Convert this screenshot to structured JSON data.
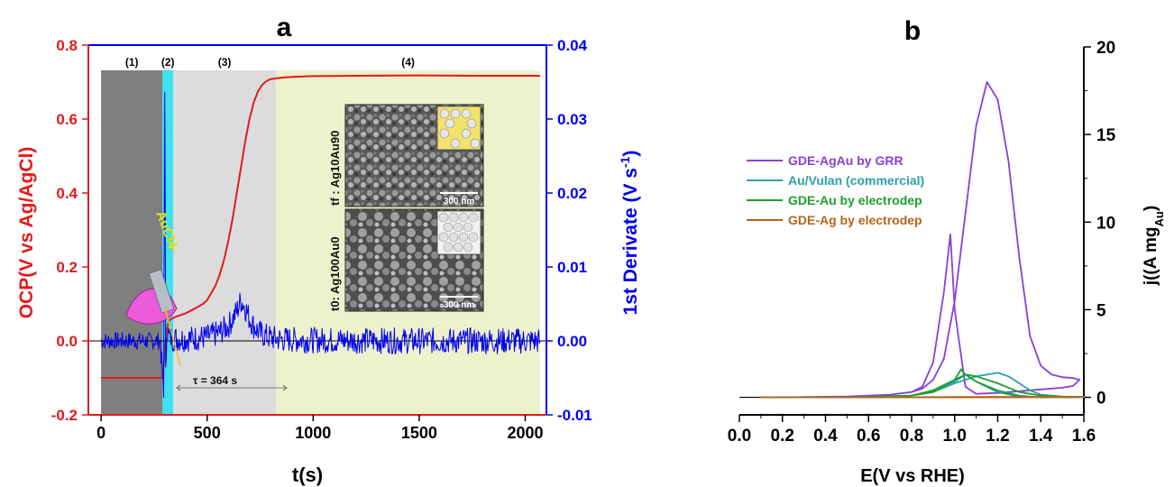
{
  "chart_data": [
    {
      "panel": "a",
      "type": "line",
      "panel_label": "a",
      "xlabel": "t(s)",
      "ylabel_left": "OCP(V vs Ag/AgCl)",
      "ylabel_right": "1st Derivate (V s-1)",
      "xlim": [
        -60,
        2100
      ],
      "ylim_left": [
        -0.2,
        0.8
      ],
      "ylim_right": [
        -0.01,
        0.04
      ],
      "x_ticks": [
        "0",
        "500",
        "1000",
        "1500",
        "2000"
      ],
      "y_ticks_left": [
        "-0.2",
        "0.0",
        "0.2",
        "0.4",
        "0.6",
        "0.8"
      ],
      "y_ticks_right": [
        "-0.01",
        "0.00",
        "0.01",
        "0.02",
        "0.03",
        "0.04"
      ],
      "colors": {
        "ocp": "#e31a1c",
        "derivative": "#0000ee",
        "left_axis": "#e31a1c",
        "right_axis": "#0000ee"
      },
      "regions": [
        {
          "label": "(1)",
          "x": [
            0,
            290
          ],
          "color": "#7f7f7f"
        },
        {
          "label": "(2)",
          "x": [
            290,
            340
          ],
          "color": "#3fe0f0"
        },
        {
          "label": "(3)",
          "x": [
            340,
            825
          ],
          "color": "#dcdcdc"
        },
        {
          "label": "(4)",
          "x": [
            825,
            2070
          ],
          "color": "#eef2cc"
        }
      ],
      "series": [
        {
          "axis": "left",
          "color": "#e31a1c",
          "x": [
            0,
            280,
            290,
            295,
            300,
            310,
            320,
            350,
            400,
            450,
            480,
            500,
            520,
            540,
            560,
            580,
            600,
            620,
            640,
            660,
            680,
            700,
            720,
            740,
            760,
            780,
            800,
            825,
            850,
            900,
            1000,
            1200,
            1500,
            1800,
            2070
          ],
          "y": [
            -0.1,
            -0.1,
            -0.1,
            -0.07,
            -0.02,
            0.03,
            0.055,
            0.065,
            0.075,
            0.09,
            0.1,
            0.11,
            0.13,
            0.15,
            0.18,
            0.22,
            0.27,
            0.33,
            0.4,
            0.47,
            0.54,
            0.6,
            0.645,
            0.675,
            0.693,
            0.703,
            0.708,
            0.71,
            0.712,
            0.714,
            0.716,
            0.717,
            0.718,
            0.717,
            0.717
          ]
        },
        {
          "axis": "right",
          "color": "#0000ee",
          "x": [
            0,
            100,
            200,
            280,
            295,
            300,
            305,
            310,
            320,
            350,
            400,
            450,
            500,
            550,
            600,
            640,
            660,
            680,
            700,
            720,
            750,
            800,
            850,
            1000,
            1500,
            2000,
            2070
          ],
          "y": [
            0,
            0,
            0,
            0,
            -0.008,
            0.035,
            -0.005,
            0.002,
            0.0005,
            0.0003,
            0.0003,
            0.0004,
            0.0005,
            0.001,
            0.002,
            0.004,
            0.0055,
            0.0045,
            0.003,
            0.002,
            0.001,
            0.0004,
            0.0002,
            0.0001,
            0,
            0,
            0
          ]
        }
      ],
      "annotations": {
        "tau": "τ = 364 s",
        "reagent": "AuCl4-",
        "sem_top_label": "tf : Ag10Au90",
        "sem_bottom_label": "t0: Ag100Au0",
        "scale_bar_top": "300 nm",
        "scale_bar_bottom": "300 nm"
      }
    },
    {
      "panel": "b",
      "type": "line",
      "panel_label": "b",
      "xlabel": "E(V vs RHE)",
      "ylabel": "j((A mgAu)",
      "xlim": [
        0.0,
        1.6
      ],
      "ylim": [
        -1,
        20
      ],
      "x_ticks": [
        "0.0",
        "0.2",
        "0.4",
        "0.6",
        "0.8",
        "1.0",
        "1.2",
        "1.4",
        "1.6"
      ],
      "y_ticks": [
        "0",
        "5",
        "10",
        "15",
        "20"
      ],
      "legend_position": "top-left",
      "series": [
        {
          "name": "GDE-AgAu by GRR",
          "color": "#8a3fd6",
          "x": [
            0.1,
            0.3,
            0.5,
            0.7,
            0.8,
            0.85,
            0.9,
            0.95,
            1.0,
            1.05,
            1.1,
            1.15,
            1.2,
            1.25,
            1.3,
            1.35,
            1.4,
            1.45,
            1.5,
            1.55,
            1.58,
            1.55,
            1.5,
            1.4,
            1.3,
            1.2,
            1.1,
            1.05,
            1.0,
            0.98,
            0.95,
            0.9,
            0.85,
            0.8,
            0.7,
            0.5,
            0.3,
            0.1
          ],
          "y": [
            0.0,
            0.02,
            0.05,
            0.15,
            0.3,
            0.5,
            1.0,
            2.2,
            5.5,
            10.5,
            15.5,
            18.0,
            17.0,
            13.5,
            8.0,
            3.5,
            1.8,
            1.3,
            1.15,
            1.1,
            1.0,
            0.65,
            0.55,
            0.45,
            0.35,
            0.25,
            0.2,
            0.6,
            5.0,
            9.3,
            6.0,
            2.0,
            0.6,
            0.3,
            0.15,
            0.05,
            0.02,
            0.0
          ]
        },
        {
          "name": "Au/Vulan (commercial)",
          "color": "#2aa0a8",
          "x": [
            0.1,
            0.5,
            0.8,
            0.9,
            1.0,
            1.1,
            1.2,
            1.25,
            1.3,
            1.35,
            1.4,
            1.5,
            1.6,
            1.5,
            1.4,
            1.3,
            1.2,
            1.1,
            1.05,
            1.0,
            0.9,
            0.8,
            0.5,
            0.1
          ],
          "y": [
            0.0,
            0.0,
            0.1,
            0.3,
            0.8,
            1.2,
            1.4,
            1.2,
            0.8,
            0.4,
            0.15,
            0.05,
            0.02,
            0.0,
            0.0,
            0.1,
            0.4,
            0.9,
            1.3,
            0.9,
            0.3,
            0.1,
            0.0,
            0.0
          ]
        },
        {
          "name": "GDE-Au by electrodep",
          "color": "#1f9e2e",
          "x": [
            0.1,
            0.5,
            0.8,
            0.9,
            1.0,
            1.05,
            1.1,
            1.2,
            1.3,
            1.4,
            1.5,
            1.6,
            1.5,
            1.4,
            1.3,
            1.2,
            1.1,
            1.05,
            1.03,
            1.0,
            0.9,
            0.8,
            0.5,
            0.1
          ],
          "y": [
            0.0,
            0.0,
            0.1,
            0.4,
            1.0,
            1.3,
            1.2,
            0.8,
            0.3,
            0.1,
            0.03,
            0.02,
            0.0,
            0.0,
            0.05,
            0.3,
            0.9,
            1.3,
            1.6,
            1.0,
            0.3,
            0.1,
            0.0,
            0.0
          ]
        },
        {
          "name": "GDE-Ag by electrodep",
          "color": "#b5651d",
          "x": [
            0.1,
            0.5,
            1.0,
            1.3,
            1.6,
            1.3,
            1.0,
            0.5,
            0.1
          ],
          "y": [
            0.0,
            0.0,
            0.02,
            0.03,
            0.02,
            0.0,
            0.0,
            0.0,
            0.0
          ]
        }
      ]
    }
  ]
}
